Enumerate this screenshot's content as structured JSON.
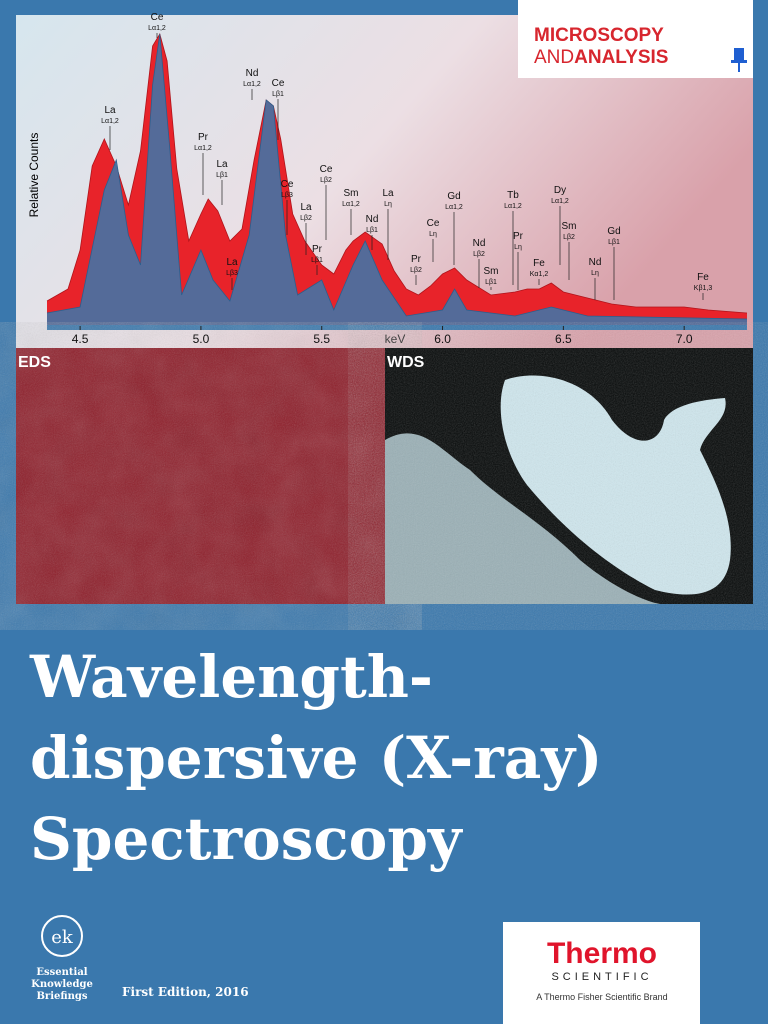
{
  "chart_data": {
    "type": "area",
    "y_label": "Relative Counts",
    "x_label": "keV",
    "xlim": [
      4.363,
      7.26
    ],
    "ylim": [
      0,
      100
    ],
    "xticks": [
      4.5,
      {
        "value": 5,
        "label": "5.0"
      },
      5.5,
      {
        "value": 6,
        "label": "6.0"
      },
      6.5,
      {
        "value": 7,
        "label": "7.0"
      }
    ],
    "series": [
      {
        "name": "EDS",
        "color": "#e8232a",
        "x": [
          4.363,
          4.45,
          4.5,
          4.55,
          4.6,
          4.65,
          4.7,
          4.75,
          4.8,
          4.83,
          4.86,
          4.9,
          4.95,
          5.0,
          5.03,
          5.07,
          5.12,
          5.17,
          5.22,
          5.27,
          5.3,
          5.33,
          5.38,
          5.43,
          5.5,
          5.55,
          5.6,
          5.63,
          5.68,
          5.75,
          5.8,
          5.85,
          5.9,
          5.95,
          6.0,
          6.05,
          6.1,
          6.2,
          6.3,
          6.35,
          6.4,
          6.45,
          6.5,
          6.6,
          6.7,
          6.8,
          6.9,
          7.0,
          7.1,
          7.26
        ],
        "values": [
          8,
          12,
          25,
          53,
          62,
          53,
          40,
          58,
          93,
          97,
          88,
          52,
          28,
          37,
          42,
          38,
          28,
          32,
          55,
          75,
          73,
          62,
          37,
          28,
          20,
          17,
          25,
          28,
          31,
          27,
          18,
          12,
          10,
          13,
          17,
          19,
          15,
          10,
          11,
          12,
          12,
          14,
          11,
          9,
          7,
          6,
          6,
          6,
          5,
          4
        ]
      },
      {
        "name": "WDS",
        "color": "#3a78ad",
        "x": [
          4.363,
          4.5,
          4.6,
          4.65,
          4.7,
          4.75,
          4.8,
          4.83,
          4.87,
          4.92,
          5.0,
          5.05,
          5.12,
          5.2,
          5.27,
          5.3,
          5.35,
          5.4,
          5.5,
          5.55,
          5.63,
          5.68,
          5.75,
          5.85,
          6.0,
          6.05,
          6.1,
          6.3,
          6.45,
          6.6,
          7.26
        ],
        "values": [
          4,
          6,
          45,
          55,
          30,
          20,
          80,
          97,
          60,
          10,
          25,
          15,
          8,
          30,
          75,
          73,
          30,
          10,
          15,
          5,
          20,
          28,
          15,
          3,
          5,
          12,
          5,
          3,
          6,
          3,
          2
        ]
      }
    ],
    "annotations": [
      {
        "text": "La",
        "sub": "Lα1,2"
      },
      {
        "text": "Ce",
        "sub": "Lα1,2"
      },
      {
        "text": "Pr",
        "sub": "Lα1,2"
      },
      {
        "text": "La",
        "sub": "Lβ1"
      },
      {
        "text": "Nd",
        "sub": "Lα1,2"
      },
      {
        "text": "Ce",
        "sub": "Lβ1"
      },
      {
        "text": "La",
        "sub": "Lβ3"
      },
      {
        "text": "Ce",
        "sub": "Lβ3"
      },
      {
        "text": "La",
        "sub": "Lβ2"
      },
      {
        "text": "Pr",
        "sub": "Lβ1"
      },
      {
        "text": "Ce",
        "sub": "Lβ2"
      },
      {
        "text": "Sm",
        "sub": "Lα1,2"
      },
      {
        "text": "Nd",
        "sub": "Lβ1"
      },
      {
        "text": "La",
        "sub": "Lη"
      },
      {
        "text": "Pr",
        "sub": "Lβ2"
      },
      {
        "text": "Ce",
        "sub": "Lη"
      },
      {
        "text": "Gd",
        "sub": "Lα1,2"
      },
      {
        "text": "Nd",
        "sub": "Lβ2"
      },
      {
        "text": "Sm",
        "sub": "Lβ1"
      },
      {
        "text": "Tb",
        "sub": "Lα1,2"
      },
      {
        "text": "Pr",
        "sub": "Lη"
      },
      {
        "text": "Fe",
        "sub": "Kα1,2"
      },
      {
        "text": "Dy",
        "sub": "Lα1,2"
      },
      {
        "text": "Sm",
        "sub": "Lβ2"
      },
      {
        "text": "Nd",
        "sub": "Lη"
      },
      {
        "text": "Gd",
        "sub": "Lβ1"
      },
      {
        "text": "Fe",
        "sub": "Kβ1,3"
      }
    ]
  },
  "masthead": {
    "line1": "MICROSCOPY",
    "line2a": "AND",
    "line2b": "ANALYSIS"
  },
  "title": [
    "Wavelength-",
    "dispersive (X-ray)",
    "Spectroscopy"
  ],
  "series_logo": [
    "Essential",
    "Knowledge",
    "Briefings"
  ],
  "edition": "First Edition, 2016",
  "sponsor": {
    "name": "Thermo",
    "sub": "SCIENTIFIC",
    "tagline": "A Thermo Fisher Scientific Brand"
  }
}
